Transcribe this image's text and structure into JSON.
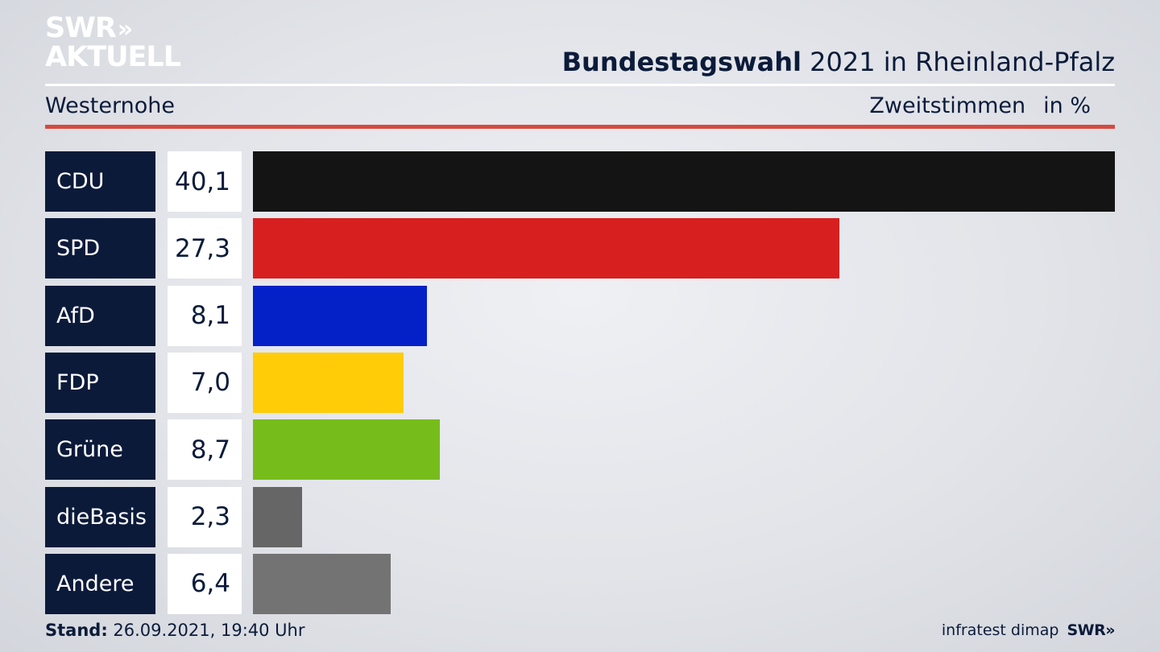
{
  "logo": {
    "line1": "SWR",
    "chevrons": "»",
    "line2": "AKTUELL"
  },
  "header": {
    "title_bold": "Bundestagswahl",
    "title_rest": " 2021 in Rheinland-Pfalz",
    "region": "Westernohe",
    "measure": "Zweitstimmen",
    "unit": "in %"
  },
  "chart_data": {
    "type": "bar",
    "orientation": "horizontal",
    "categories": [
      "CDU",
      "SPD",
      "AfD",
      "FDP",
      "Grüne",
      "dieBasis",
      "Andere"
    ],
    "values": [
      40.1,
      27.3,
      8.1,
      7.0,
      8.7,
      2.3,
      6.4
    ],
    "value_labels": [
      "40,1",
      "27,3",
      "8,1",
      "7,0",
      "8,7",
      "2,3",
      "6,4"
    ],
    "colors": [
      "#141414",
      "#d81f1f",
      "#0421c8",
      "#ffcc07",
      "#76bd1c",
      "#666666",
      "#737373"
    ]
  },
  "footer": {
    "stand_label": "Stand:",
    "stand_value": " 26.09.2021, 19:40 Uhr",
    "source": "infratest dimap",
    "brand": "SWR»"
  }
}
